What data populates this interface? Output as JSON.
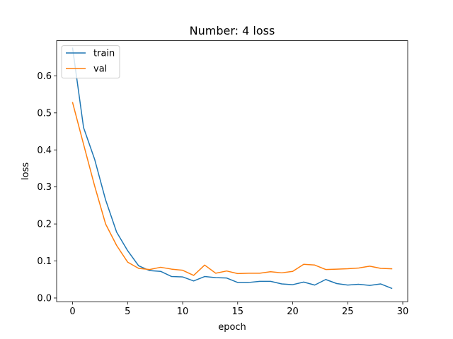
{
  "chart_data": {
    "type": "line",
    "title": "Number: 4 loss",
    "xlabel": "epoch",
    "ylabel": "loss",
    "xlim": [
      -1.45,
      30.45
    ],
    "ylim": [
      -0.01,
      0.695
    ],
    "xticks": [
      0,
      5,
      10,
      15,
      20,
      25,
      30
    ],
    "yticks": [
      0.0,
      0.1,
      0.2,
      0.3,
      0.4,
      0.5,
      0.6
    ],
    "xtick_labels": [
      "0",
      "5",
      "10",
      "15",
      "20",
      "25",
      "30"
    ],
    "ytick_labels": [
      "0.0",
      "0.1",
      "0.2",
      "0.3",
      "0.4",
      "0.5",
      "0.6"
    ],
    "grid": false,
    "legend_position": "upper-left",
    "x": [
      0,
      1,
      2,
      3,
      4,
      5,
      6,
      7,
      8,
      9,
      10,
      11,
      12,
      13,
      14,
      15,
      16,
      17,
      18,
      19,
      20,
      21,
      22,
      23,
      24,
      25,
      26,
      27,
      28,
      29
    ],
    "series": [
      {
        "name": "train",
        "color": "#1f77b4",
        "values": [
          0.675,
          0.46,
          0.375,
          0.265,
          0.178,
          0.128,
          0.087,
          0.074,
          0.072,
          0.058,
          0.057,
          0.046,
          0.058,
          0.055,
          0.054,
          0.042,
          0.042,
          0.045,
          0.045,
          0.038,
          0.036,
          0.043,
          0.035,
          0.05,
          0.039,
          0.035,
          0.037,
          0.034,
          0.038,
          0.026
        ]
      },
      {
        "name": "val",
        "color": "#ff7f0e",
        "values": [
          0.528,
          0.415,
          0.303,
          0.2,
          0.142,
          0.097,
          0.08,
          0.077,
          0.083,
          0.078,
          0.075,
          0.061,
          0.089,
          0.067,
          0.073,
          0.066,
          0.067,
          0.067,
          0.071,
          0.068,
          0.072,
          0.091,
          0.089,
          0.077,
          0.078,
          0.079,
          0.081,
          0.086,
          0.08,
          0.079
        ]
      }
    ]
  }
}
